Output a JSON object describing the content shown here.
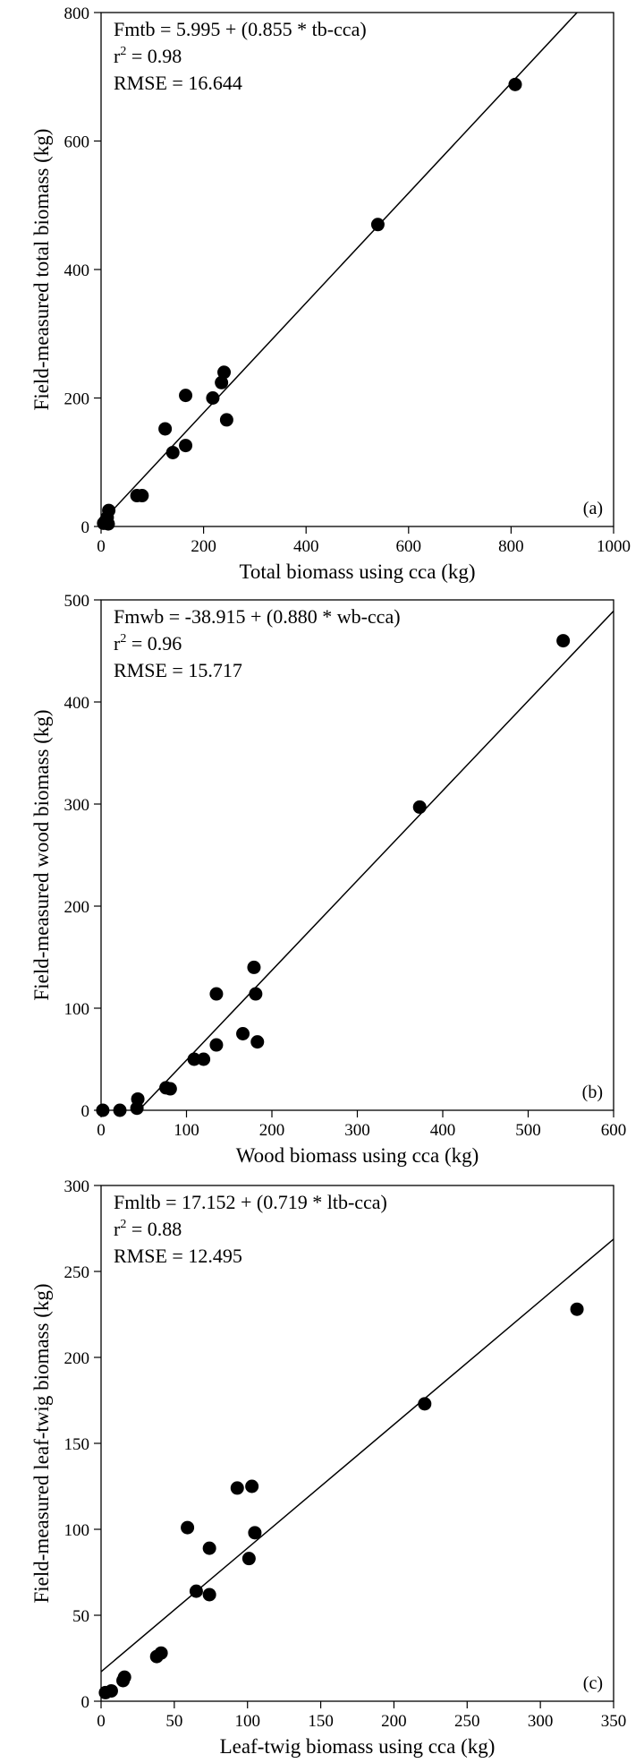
{
  "chart_data": [
    {
      "type": "scatter",
      "panel_label": "(a)",
      "xlabel": "Total biomass using cca (kg)",
      "ylabel": "Field-measured total biomass (kg)",
      "xlim": [
        0,
        1000
      ],
      "ylim": [
        0,
        800
      ],
      "xticks": [
        "0",
        "200",
        "400",
        "600",
        "800",
        "1000"
      ],
      "yticks": [
        "0",
        "200",
        "400",
        "600",
        "800"
      ],
      "equation": "Fmtb = 5.995 + (0.855 * tb-cca)",
      "r2_prefix": "r",
      "r2_sup": "2",
      "r2_value": " = 0.98",
      "rmse": "RMSE = 16.644",
      "fit": {
        "intercept": 5.995,
        "slope": 0.855
      },
      "points": [
        {
          "x": 5,
          "y": 5
        },
        {
          "x": 8,
          "y": 8
        },
        {
          "x": 10,
          "y": 10
        },
        {
          "x": 12,
          "y": 14
        },
        {
          "x": 14,
          "y": 4
        },
        {
          "x": 15,
          "y": 25
        },
        {
          "x": 70,
          "y": 48
        },
        {
          "x": 80,
          "y": 48
        },
        {
          "x": 125,
          "y": 152
        },
        {
          "x": 140,
          "y": 115
        },
        {
          "x": 165,
          "y": 126
        },
        {
          "x": 165,
          "y": 204
        },
        {
          "x": 218,
          "y": 200
        },
        {
          "x": 235,
          "y": 224
        },
        {
          "x": 240,
          "y": 240
        },
        {
          "x": 245,
          "y": 166
        },
        {
          "x": 540,
          "y": 470
        },
        {
          "x": 808,
          "y": 688
        }
      ]
    },
    {
      "type": "scatter",
      "panel_label": "(b)",
      "xlabel": "Wood biomass using cca (kg)",
      "ylabel": "Field-measured wood biomass (kg)",
      "xlim": [
        0,
        600
      ],
      "ylim": [
        0,
        500
      ],
      "xticks": [
        "0",
        "100",
        "200",
        "300",
        "400",
        "500",
        "600"
      ],
      "yticks": [
        "0",
        "100",
        "200",
        "300",
        "400",
        "500"
      ],
      "equation": "Fmwb = -38.915 + (0.880 * wb-cca)",
      "r2_prefix": "r",
      "r2_sup": "2",
      "r2_value": " = 0.96",
      "rmse": "RMSE = 15.717",
      "fit": {
        "intercept": -38.915,
        "slope": 0.88
      },
      "points": [
        {
          "x": 2,
          "y": 0
        },
        {
          "x": 22,
          "y": 0
        },
        {
          "x": 42,
          "y": 2
        },
        {
          "x": 43,
          "y": 11
        },
        {
          "x": 76,
          "y": 22
        },
        {
          "x": 81,
          "y": 21
        },
        {
          "x": 109,
          "y": 50
        },
        {
          "x": 120,
          "y": 50
        },
        {
          "x": 135,
          "y": 64
        },
        {
          "x": 135,
          "y": 114
        },
        {
          "x": 166,
          "y": 75
        },
        {
          "x": 179,
          "y": 140
        },
        {
          "x": 181,
          "y": 114
        },
        {
          "x": 183,
          "y": 67
        },
        {
          "x": 373,
          "y": 297
        },
        {
          "x": 541,
          "y": 460
        }
      ]
    },
    {
      "type": "scatter",
      "panel_label": "(c)",
      "xlabel": "Leaf-twig biomass using cca (kg)",
      "ylabel": "Field-measured leaf-twig biomass (kg)",
      "xlim": [
        0,
        350
      ],
      "ylim": [
        0,
        300
      ],
      "xticks": [
        "0",
        "50",
        "100",
        "150",
        "200",
        "250",
        "300",
        "350"
      ],
      "yticks": [
        "0",
        "50",
        "100",
        "150",
        "200",
        "250",
        "300"
      ],
      "equation": "Fmltb = 17.152 + (0.719 * ltb-cca)",
      "r2_prefix": "r",
      "r2_sup": "2",
      "r2_value": " = 0.88",
      "rmse": "RMSE = 12.495",
      "fit": {
        "intercept": 17.152,
        "slope": 0.719
      },
      "points": [
        {
          "x": 3,
          "y": 5
        },
        {
          "x": 7,
          "y": 6
        },
        {
          "x": 15,
          "y": 12
        },
        {
          "x": 16,
          "y": 14
        },
        {
          "x": 38,
          "y": 26
        },
        {
          "x": 41,
          "y": 28
        },
        {
          "x": 59,
          "y": 101
        },
        {
          "x": 65,
          "y": 64
        },
        {
          "x": 74,
          "y": 62
        },
        {
          "x": 74,
          "y": 89
        },
        {
          "x": 93,
          "y": 124
        },
        {
          "x": 101,
          "y": 83
        },
        {
          "x": 103,
          "y": 125
        },
        {
          "x": 105,
          "y": 98
        },
        {
          "x": 221,
          "y": 173
        },
        {
          "x": 325,
          "y": 228
        }
      ]
    }
  ]
}
